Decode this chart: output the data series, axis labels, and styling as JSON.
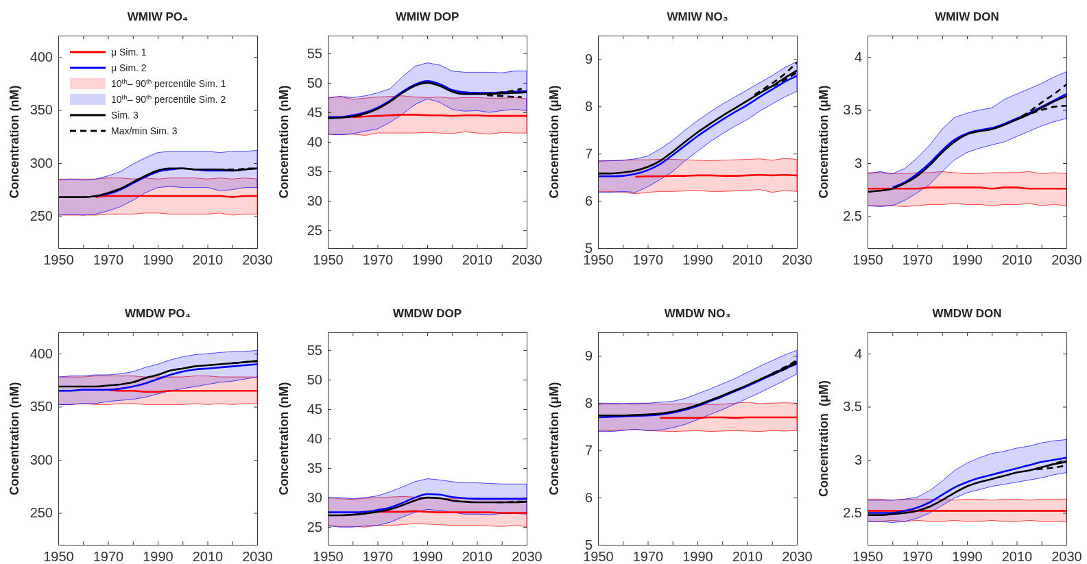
{
  "chart_data": [
    {
      "type": "line",
      "title": "WMIW PO₄",
      "ylabel": "Concentration (nM)",
      "legend": "top left",
      "annotations": [
        "10$^{th}$– 90$^{th}$ percentile Sim. 1",
        "10$^{th}$– 90$^{th}$ percentile Sim. 2"
      ],
      "x": [
        1950,
        1955,
        1960,
        1965,
        1970,
        1975,
        1980,
        1985,
        1990,
        1995,
        2000,
        2005,
        2010,
        2015,
        2020,
        2025,
        2030
      ],
      "xlim": [
        1950,
        2030
      ],
      "xticks": [
        1950,
        {
          "value": 1960,
          "label": null
        },
        1970,
        {
          "value": 1980,
          "label": null
        },
        1990,
        {
          "value": 2000,
          "label": null
        },
        2010,
        {
          "value": 2020,
          "label": null
        },
        2030
      ],
      "ylim": [
        220,
        420
      ],
      "yticks": [
        250,
        300,
        350,
        400
      ],
      "series": [
        {
          "name": "μ Sim. 1",
          "color": "#ff0000",
          "values": [
            null,
            null,
            null,
            268,
            269,
            269,
            269,
            269,
            269,
            269,
            269,
            269,
            269,
            269,
            268,
            269,
            269
          ],
          "lower": [
            251,
            251,
            251,
            251,
            252,
            252,
            252,
            253,
            253,
            252,
            252,
            252,
            252,
            253,
            251,
            252,
            252
          ],
          "upper": [
            285,
            285,
            285,
            285,
            286,
            286,
            285,
            286,
            285,
            286,
            286,
            286,
            285,
            286,
            285,
            286,
            285
          ]
        },
        {
          "name": "μ Sim. 2",
          "color": "#0000ff",
          "values": [
            null,
            null,
            null,
            269,
            271,
            275,
            281,
            287,
            292,
            294,
            295,
            294,
            293,
            293,
            293,
            294,
            295
          ],
          "lower": [
            251,
            252,
            251,
            252,
            255,
            259,
            265,
            272,
            277,
            278,
            277,
            277,
            277,
            274,
            275,
            277,
            277
          ],
          "upper": [
            284,
            285,
            284,
            285,
            288,
            292,
            299,
            305,
            310,
            311,
            311,
            311,
            311,
            310,
            311,
            311,
            312
          ]
        },
        {
          "name": "Sim. 3",
          "color": "#000000",
          "values": [
            268,
            268,
            268,
            269,
            272,
            276,
            282,
            288,
            293,
            295,
            295,
            294,
            294,
            294,
            293,
            294,
            295
          ]
        },
        {
          "name": "Max/min Sim. 3",
          "color": "#000000",
          "line_style": "dashed",
          "x": [
            2014,
            2018,
            2022,
            2026,
            2030
          ],
          "values": [
            294,
            294,
            294,
            295,
            295
          ]
        }
      ]
    },
    {
      "type": "line",
      "title": "WMIW DOP",
      "ylabel": "Concentration (nM)",
      "legend": false,
      "x": [
        1950,
        1955,
        1960,
        1965,
        1970,
        1975,
        1980,
        1985,
        1990,
        1995,
        2000,
        2005,
        2010,
        2015,
        2020,
        2025,
        2030
      ],
      "xlim": [
        1950,
        2030
      ],
      "xticks": [
        1950,
        {
          "value": 1960,
          "label": null
        },
        1970,
        {
          "value": 1980,
          "label": null
        },
        1990,
        {
          "value": 2000,
          "label": null
        },
        2010,
        {
          "value": 2020,
          "label": null
        },
        2030
      ],
      "ylim": [
        22,
        58
      ],
      "yticks": [
        25,
        30,
        35,
        40,
        45,
        50,
        55
      ],
      "series": [
        {
          "color": "#ff0000",
          "values": [
            null,
            null,
            44.2,
            44.3,
            44.4,
            44.5,
            44.6,
            44.6,
            44.5,
            44.5,
            44.4,
            44.5,
            44.5,
            44.4,
            44.4,
            44.4,
            44.4
          ],
          "lower": [
            41.3,
            41.2,
            41.3,
            41.1,
            41.5,
            41.5,
            41.5,
            41.5,
            41.6,
            41.5,
            41.4,
            41.7,
            41.5,
            41.3,
            41.6,
            41.5,
            41.5
          ],
          "upper": [
            47.5,
            47.7,
            47.2,
            47.4,
            47.6,
            47.7,
            47.8,
            47.6,
            47.5,
            47.6,
            47.4,
            47.5,
            47.5,
            47.4,
            47.4,
            47.5,
            47.3
          ]
        },
        {
          "color": "#0000ff",
          "values": [
            44.2,
            44.2,
            44.5,
            45.0,
            45.8,
            47.0,
            48.5,
            49.7,
            50.3,
            49.8,
            48.8,
            48.4,
            48.3,
            48.3,
            48.4,
            48.5,
            48.6
          ],
          "lower": [
            41.3,
            41.2,
            41.4,
            41.8,
            42.2,
            43.3,
            44.7,
            46.3,
            47.3,
            46.7,
            45.5,
            45.2,
            45.3,
            45.0,
            45.3,
            45.5,
            45.3
          ],
          "upper": [
            47.4,
            47.7,
            47.5,
            47.8,
            48.3,
            49.0,
            51.0,
            52.8,
            53.4,
            53.0,
            52.0,
            51.8,
            51.8,
            51.8,
            51.7,
            52.0,
            52.0
          ]
        },
        {
          "color": "#000000",
          "values": [
            44.0,
            44.1,
            44.3,
            44.8,
            45.6,
            46.8,
            48.3,
            49.5,
            50.0,
            49.5,
            48.5,
            48.1,
            48.1,
            48.1,
            48.2,
            48.3,
            48.4
          ]
        },
        {
          "color": "#000000",
          "line_style": "dashed",
          "x": [
            2014,
            2018,
            2022,
            2026,
            2028
          ],
          "values": [
            48.2,
            48.3,
            48.5,
            48.8,
            49.0
          ]
        },
        {
          "color": "#000000",
          "line_style": "dashed",
          "x": [
            2014,
            2018,
            2022,
            2026,
            2028
          ],
          "values": [
            47.9,
            47.8,
            47.7,
            47.6,
            47.6
          ]
        }
      ]
    },
    {
      "type": "line",
      "title": "WMIW NO₃",
      "ylabel": "Concentration (μM)",
      "legend": false,
      "x": [
        1950,
        1955,
        1960,
        1965,
        1970,
        1975,
        1980,
        1985,
        1990,
        1995,
        2000,
        2005,
        2010,
        2015,
        2020,
        2025,
        2030
      ],
      "xlim": [
        1950,
        2030
      ],
      "xticks": [
        1950,
        {
          "value": 1960,
          "label": null
        },
        1970,
        {
          "value": 1980,
          "label": null
        },
        1990,
        {
          "value": 2000,
          "label": null
        },
        2010,
        {
          "value": 2020,
          "label": null
        },
        2030
      ],
      "ylim": [
        5,
        9.5
      ],
      "yticks": [
        5,
        6,
        7,
        8,
        9
      ],
      "series": [
        {
          "color": "#ff0000",
          "values": [
            null,
            null,
            null,
            6.51,
            6.52,
            6.52,
            6.53,
            6.53,
            6.54,
            6.54,
            6.53,
            6.53,
            6.54,
            6.55,
            6.54,
            6.55,
            6.54
          ],
          "lower": [
            6.2,
            6.2,
            6.18,
            6.15,
            6.18,
            6.2,
            6.2,
            6.21,
            6.22,
            6.2,
            6.2,
            6.21,
            6.22,
            6.24,
            6.18,
            6.22,
            6.2
          ],
          "upper": [
            6.85,
            6.85,
            6.86,
            6.87,
            6.87,
            6.88,
            6.88,
            6.87,
            6.86,
            6.85,
            6.86,
            6.87,
            6.88,
            6.89,
            6.86,
            6.9,
            6.88
          ]
        },
        {
          "color": "#0000ff",
          "values": [
            6.52,
            6.52,
            6.53,
            6.57,
            6.65,
            6.78,
            6.97,
            7.17,
            7.37,
            7.55,
            7.72,
            7.88,
            8.03,
            8.2,
            8.36,
            8.52,
            8.65
          ],
          "lower": [
            6.18,
            6.18,
            6.2,
            6.18,
            6.3,
            6.45,
            6.62,
            6.85,
            7.05,
            7.25,
            7.42,
            7.58,
            7.72,
            7.9,
            8.05,
            8.2,
            8.32
          ],
          "upper": [
            6.84,
            6.85,
            6.86,
            6.89,
            6.95,
            7.1,
            7.28,
            7.5,
            7.7,
            7.88,
            8.05,
            8.2,
            8.35,
            8.5,
            8.65,
            8.82,
            8.95
          ]
        },
        {
          "color": "#000000",
          "values": [
            6.58,
            6.58,
            6.6,
            6.64,
            6.72,
            6.85,
            7.04,
            7.25,
            7.45,
            7.63,
            7.8,
            7.96,
            8.12,
            8.28,
            8.43,
            8.6,
            8.76
          ]
        },
        {
          "color": "#000000",
          "line_style": "dashed",
          "x": [
            2013,
            2018,
            2023,
            2030
          ],
          "values": [
            8.25,
            8.42,
            8.6,
            8.93
          ]
        },
        {
          "color": "#000000",
          "line_style": "dashed",
          "x": [
            2013,
            2018,
            2023,
            2030
          ],
          "values": [
            8.22,
            8.37,
            8.5,
            8.72
          ]
        }
      ]
    },
    {
      "type": "line",
      "title": "WMIW DON",
      "ylabel": "Concentration (μM)",
      "legend": false,
      "x": [
        1950,
        1955,
        1960,
        1965,
        1970,
        1975,
        1980,
        1985,
        1990,
        1995,
        2000,
        2005,
        2010,
        2015,
        2020,
        2025,
        2030
      ],
      "xlim": [
        1950,
        2030
      ],
      "xticks": [
        1950,
        {
          "value": 1960,
          "label": null
        },
        1970,
        {
          "value": 1980,
          "label": null
        },
        1990,
        {
          "value": 2000,
          "label": null
        },
        2010,
        {
          "value": 2020,
          "label": null
        },
        2030
      ],
      "ylim": [
        2.2,
        4.2
      ],
      "yticks": [
        2.5,
        3,
        3.5,
        4
      ],
      "series": [
        {
          "color": "#ff0000",
          "values": [
            2.76,
            2.76,
            2.76,
            2.76,
            2.76,
            2.77,
            2.77,
            2.77,
            2.77,
            2.77,
            2.76,
            2.77,
            2.77,
            2.76,
            2.76,
            2.76,
            2.76
          ],
          "lower": [
            2.6,
            2.6,
            2.6,
            2.59,
            2.6,
            2.61,
            2.61,
            2.62,
            2.61,
            2.61,
            2.6,
            2.61,
            2.61,
            2.62,
            2.6,
            2.61,
            2.6
          ],
          "upper": [
            2.91,
            2.91,
            2.9,
            2.9,
            2.91,
            2.91,
            2.92,
            2.91,
            2.9,
            2.9,
            2.91,
            2.91,
            2.91,
            2.92,
            2.9,
            2.91,
            2.9
          ]
        },
        {
          "color": "#0000ff",
          "values": [
            null,
            null,
            2.77,
            2.82,
            2.9,
            3.0,
            3.12,
            3.22,
            3.28,
            3.31,
            3.33,
            3.37,
            3.42,
            3.47,
            3.53,
            3.59,
            3.65
          ],
          "lower": [
            2.6,
            2.59,
            2.6,
            2.65,
            2.72,
            2.8,
            2.92,
            3.03,
            3.1,
            3.14,
            3.17,
            3.2,
            3.25,
            3.3,
            3.35,
            3.39,
            3.42
          ],
          "upper": [
            2.9,
            2.92,
            2.9,
            2.95,
            3.05,
            3.17,
            3.32,
            3.43,
            3.47,
            3.5,
            3.52,
            3.6,
            3.65,
            3.7,
            3.75,
            3.81,
            3.86
          ]
        },
        {
          "color": "#000000",
          "values": [
            2.73,
            2.74,
            2.76,
            2.81,
            2.88,
            2.98,
            3.1,
            3.2,
            3.27,
            3.3,
            3.32,
            3.36,
            3.41,
            3.46,
            3.52,
            3.58,
            3.63
          ]
        },
        {
          "color": "#000000",
          "line_style": "dashed",
          "x": [
            2012,
            2016,
            2020,
            2025,
            2030
          ],
          "values": [
            3.44,
            3.5,
            3.57,
            3.65,
            3.74
          ]
        },
        {
          "color": "#000000",
          "line_style": "dashed",
          "x": [
            2012,
            2016,
            2020,
            2025,
            2030
          ],
          "values": [
            3.44,
            3.47,
            3.5,
            3.53,
            3.54
          ]
        }
      ]
    },
    {
      "type": "line",
      "title": "WMDW PO₄",
      "ylabel": "Concentration (nM)",
      "legend": false,
      "x": [
        1950,
        1955,
        1960,
        1965,
        1970,
        1975,
        1980,
        1985,
        1990,
        1995,
        2000,
        2005,
        2010,
        2015,
        2020,
        2025,
        2030
      ],
      "xlim": [
        1950,
        2030
      ],
      "xticks": [
        1950,
        {
          "value": 1960,
          "label": null
        },
        1970,
        {
          "value": 1980,
          "label": null
        },
        1990,
        {
          "value": 2000,
          "label": null
        },
        2010,
        {
          "value": 2020,
          "label": null
        },
        2030
      ],
      "ylim": [
        220,
        420
      ],
      "yticks": [
        250,
        300,
        350,
        400
      ],
      "series": [
        {
          "color": "#ff0000",
          "values": [
            null,
            null,
            null,
            null,
            366,
            365,
            365,
            364,
            364,
            365,
            365,
            365,
            365,
            365,
            365,
            365,
            365
          ],
          "lower": [
            352,
            352,
            353,
            352,
            352,
            353,
            353,
            352,
            352,
            352,
            352,
            353,
            352,
            353,
            352,
            353,
            353
          ],
          "upper": [
            378,
            378,
            378,
            379,
            379,
            379,
            379,
            378,
            378,
            378,
            378,
            379,
            379,
            378,
            378,
            378,
            378
          ]
        },
        {
          "color": "#0000ff",
          "values": [
            365,
            365,
            366,
            366,
            366,
            367,
            369,
            372,
            376,
            380,
            383,
            385,
            386,
            387,
            388,
            389,
            390
          ],
          "lower": [
            352,
            352,
            353,
            353,
            355,
            356,
            357,
            359,
            362,
            365,
            367,
            369,
            371,
            373,
            374,
            376,
            378
          ],
          "upper": [
            378,
            379,
            379,
            380,
            380,
            381,
            383,
            387,
            390,
            394,
            397,
            399,
            400,
            401,
            402,
            402,
            403
          ]
        },
        {
          "color": "#000000",
          "values": [
            369,
            369,
            369,
            369,
            370,
            371,
            373,
            377,
            380,
            384,
            386,
            388,
            389,
            390,
            391,
            392,
            393
          ]
        },
        {
          "color": "#000000",
          "line_style": "dashed",
          "x": [
            2020,
            2025,
            2030
          ],
          "values": [
            391,
            392,
            393
          ]
        }
      ]
    },
    {
      "type": "line",
      "title": "WMDW DOP",
      "ylabel": "Concentration (nM)",
      "legend": false,
      "x": [
        1950,
        1955,
        1960,
        1965,
        1970,
        1975,
        1980,
        1985,
        1990,
        1995,
        2000,
        2005,
        2010,
        2015,
        2020,
        2025,
        2030
      ],
      "xlim": [
        1950,
        2030
      ],
      "xticks": [
        1950,
        {
          "value": 1960,
          "label": null
        },
        1970,
        {
          "value": 1980,
          "label": null
        },
        1990,
        {
          "value": 2000,
          "label": null
        },
        2010,
        {
          "value": 2020,
          "label": null
        },
        2030
      ],
      "ylim": [
        22,
        58
      ],
      "yticks": [
        25,
        30,
        35,
        40,
        45,
        50,
        55
      ],
      "series": [
        {
          "color": "#ff0000",
          "values": [
            null,
            null,
            null,
            null,
            27.6,
            27.6,
            27.6,
            27.7,
            27.6,
            27.5,
            27.5,
            27.5,
            27.5,
            27.5,
            27.4,
            27.4,
            27.4
          ],
          "lower": [
            25.3,
            25.1,
            25.1,
            25.0,
            25.3,
            25.3,
            25.4,
            25.6,
            25.5,
            25.4,
            25.3,
            25.3,
            25.3,
            25.2,
            25.1,
            25.3,
            25.1
          ],
          "upper": [
            30.0,
            29.8,
            29.7,
            29.9,
            30.0,
            30.1,
            30.2,
            30.1,
            30.0,
            29.9,
            29.8,
            29.9,
            29.9,
            29.7,
            29.8,
            29.9,
            29.8
          ]
        },
        {
          "color": "#0000ff",
          "values": [
            27.5,
            27.5,
            27.5,
            27.6,
            27.9,
            28.3,
            29.1,
            30.0,
            30.6,
            30.5,
            30.1,
            29.9,
            29.8,
            29.8,
            29.8,
            29.8,
            29.8
          ],
          "lower": [
            25.2,
            25.0,
            25.0,
            25.2,
            25.3,
            25.8,
            26.7,
            27.5,
            28.0,
            27.8,
            27.5,
            27.2,
            27.2,
            27.1,
            27.3,
            27.3,
            27.2
          ],
          "upper": [
            30.0,
            30.0,
            29.8,
            30.0,
            30.3,
            31.0,
            31.8,
            32.7,
            33.2,
            33.0,
            32.7,
            32.5,
            32.5,
            32.4,
            32.3,
            32.3,
            32.3
          ]
        },
        {
          "color": "#000000",
          "values": [
            27.0,
            27.0,
            27.1,
            27.3,
            27.6,
            28.0,
            28.7,
            29.5,
            30.0,
            29.9,
            29.5,
            29.3,
            29.2,
            29.2,
            29.2,
            29.2,
            29.3
          ]
        },
        {
          "color": "#000000",
          "line_style": "dashed",
          "x": [
            2018,
            2022,
            2026,
            2029
          ],
          "values": [
            29.2,
            29.2,
            29.3,
            29.3
          ]
        }
      ]
    },
    {
      "type": "line",
      "title": "WMDW NO₃",
      "ylabel": "Concentration (μM)",
      "legend": false,
      "x": [
        1950,
        1955,
        1960,
        1965,
        1970,
        1975,
        1980,
        1985,
        1990,
        1995,
        2000,
        2005,
        2010,
        2015,
        2020,
        2025,
        2030
      ],
      "xlim": [
        1950,
        2030
      ],
      "xticks": [
        1950,
        {
          "value": 1960,
          "label": null
        },
        1970,
        {
          "value": 1980,
          "label": null
        },
        1990,
        {
          "value": 2000,
          "label": null
        },
        2010,
        {
          "value": 2020,
          "label": null
        },
        2030
      ],
      "ylim": [
        5,
        9.5
      ],
      "yticks": [
        5,
        6,
        7,
        8,
        9
      ],
      "series": [
        {
          "color": "#ff0000",
          "values": [
            null,
            null,
            null,
            null,
            null,
            7.69,
            7.69,
            7.69,
            7.69,
            7.7,
            7.7,
            7.69,
            7.7,
            7.7,
            7.7,
            7.7,
            7.7
          ],
          "lower": [
            7.42,
            7.42,
            7.43,
            7.44,
            7.42,
            7.41,
            7.4,
            7.41,
            7.42,
            7.4,
            7.41,
            7.42,
            7.41,
            7.4,
            7.42,
            7.41,
            7.42
          ],
          "upper": [
            7.98,
            7.98,
            7.99,
            7.98,
            7.99,
            7.98,
            7.98,
            7.99,
            7.98,
            7.97,
            7.98,
            8.0,
            8.02,
            7.99,
            8.0,
            8.01,
            8.0
          ]
        },
        {
          "color": "#0000ff",
          "values": [
            7.7,
            7.71,
            7.72,
            7.73,
            7.74,
            7.76,
            7.8,
            7.86,
            7.94,
            8.04,
            8.14,
            8.25,
            8.36,
            8.48,
            8.6,
            8.72,
            8.84
          ],
          "lower": [
            7.4,
            7.4,
            7.42,
            7.45,
            7.42,
            7.43,
            7.48,
            7.55,
            7.65,
            7.76,
            7.86,
            7.98,
            8.1,
            8.22,
            8.35,
            8.48,
            8.62
          ],
          "upper": [
            8.0,
            8.0,
            7.99,
            8.0,
            8.0,
            8.02,
            8.04,
            8.1,
            8.2,
            8.3,
            8.41,
            8.52,
            8.65,
            8.78,
            8.9,
            9.02,
            9.12
          ]
        },
        {
          "color": "#000000",
          "values": [
            7.74,
            7.74,
            7.74,
            7.75,
            7.76,
            7.78,
            7.82,
            7.88,
            7.96,
            8.06,
            8.16,
            8.27,
            8.38,
            8.5,
            8.62,
            8.74,
            8.88
          ]
        },
        {
          "color": "#000000",
          "line_style": "dashed",
          "x": [
            2020,
            2025,
            2030
          ],
          "values": [
            8.63,
            8.76,
            8.91
          ]
        },
        {
          "color": "#000000",
          "line_style": "dashed",
          "x": [
            2020,
            2025,
            2030
          ],
          "values": [
            8.6,
            8.72,
            8.85
          ]
        }
      ]
    },
    {
      "type": "line",
      "title": "WMDW DON",
      "ylabel": "Concentration  (μM)",
      "legend": false,
      "x": [
        1950,
        1955,
        1960,
        1965,
        1970,
        1975,
        1980,
        1985,
        1990,
        1995,
        2000,
        2005,
        2010,
        2015,
        2020,
        2025,
        2030
      ],
      "xlim": [
        1950,
        2030
      ],
      "xticks": [
        1950,
        {
          "value": 1960,
          "label": null
        },
        1970,
        {
          "value": 1980,
          "label": null
        },
        1990,
        {
          "value": 2000,
          "label": null
        },
        2010,
        {
          "value": 2020,
          "label": null
        },
        2030
      ],
      "ylim": [
        2.2,
        4.2
      ],
      "yticks": [
        2.5,
        3,
        3.5,
        4
      ],
      "series": [
        {
          "color": "#ff0000",
          "values": [
            2.52,
            2.52,
            2.52,
            2.52,
            2.52,
            2.52,
            2.52,
            2.52,
            2.52,
            2.52,
            2.52,
            2.52,
            2.52,
            2.52,
            2.52,
            2.52,
            2.52
          ],
          "lower": [
            2.42,
            2.42,
            2.43,
            2.42,
            2.43,
            2.42,
            2.42,
            2.43,
            2.42,
            2.42,
            2.43,
            2.42,
            2.42,
            2.43,
            2.42,
            2.42,
            2.42
          ],
          "upper": [
            2.63,
            2.63,
            2.62,
            2.63,
            2.63,
            2.63,
            2.63,
            2.62,
            2.63,
            2.63,
            2.62,
            2.63,
            2.63,
            2.62,
            2.63,
            2.63,
            2.63
          ]
        },
        {
          "color": "#0000ff",
          "values": [
            2.5,
            2.5,
            2.5,
            2.52,
            2.55,
            2.6,
            2.67,
            2.74,
            2.79,
            2.83,
            2.86,
            2.89,
            2.92,
            2.95,
            2.98,
            3.0,
            3.02
          ],
          "lower": [
            2.42,
            2.42,
            2.41,
            2.42,
            2.45,
            2.5,
            2.57,
            2.64,
            2.69,
            2.72,
            2.75,
            2.77,
            2.79,
            2.81,
            2.83,
            2.86,
            2.88
          ],
          "upper": [
            2.62,
            2.62,
            2.62,
            2.63,
            2.65,
            2.71,
            2.8,
            2.9,
            2.97,
            3.02,
            3.06,
            3.08,
            3.11,
            3.13,
            3.16,
            3.18,
            3.19
          ]
        },
        {
          "color": "#000000",
          "values": [
            2.48,
            2.48,
            2.49,
            2.5,
            2.52,
            2.56,
            2.62,
            2.69,
            2.75,
            2.79,
            2.82,
            2.85,
            2.88,
            2.9,
            2.93,
            2.96,
            2.98
          ]
        },
        {
          "color": "#000000",
          "line_style": "dashed",
          "x": [
            2018,
            2022,
            2026,
            2030
          ],
          "values": [
            2.92,
            2.94,
            2.97,
            3.0
          ]
        },
        {
          "color": "#000000",
          "line_style": "dashed",
          "x": [
            2018,
            2022,
            2026,
            2030
          ],
          "values": [
            2.91,
            2.92,
            2.93,
            2.95
          ]
        }
      ]
    }
  ]
}
